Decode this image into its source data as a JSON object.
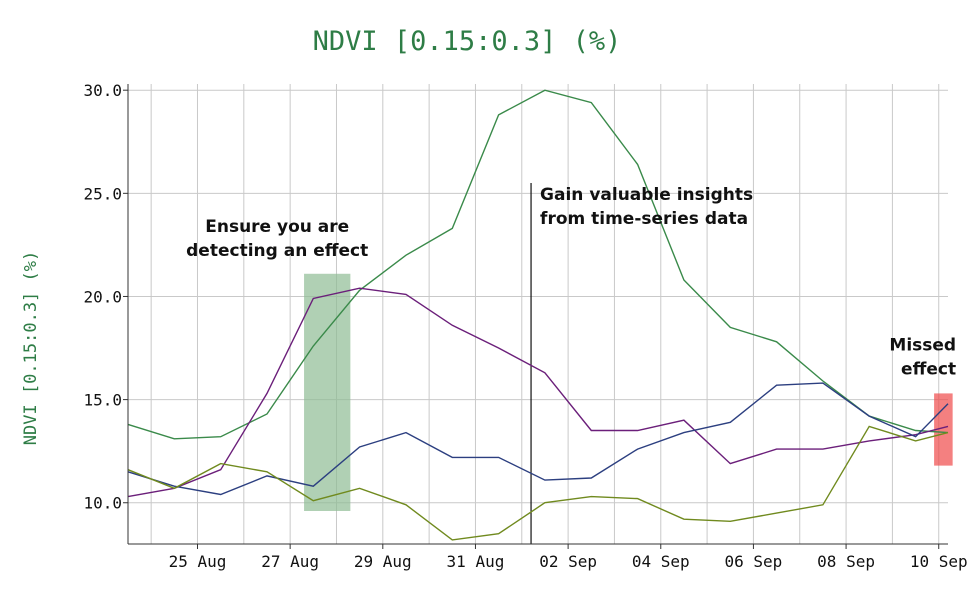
{
  "chart_data": {
    "type": "line",
    "title": "NDVI [0.15:0.3] (%)",
    "xlabel": "",
    "ylabel": "NDVI [0.15:0.3] (%)",
    "x_tick_labels": [
      "25 Aug",
      "27 Aug",
      "29 Aug",
      "31 Aug",
      "02 Sep",
      "04 Sep",
      "06 Sep",
      "08 Sep",
      "10 Sep"
    ],
    "y_tick_labels": [
      "10.0",
      "15.0",
      "20.0",
      "25.0",
      "30.0"
    ],
    "y_ticks": [
      10,
      15,
      20,
      25,
      30
    ],
    "xlim": [
      23.5,
      41.2
    ],
    "ylim": [
      8.0,
      30.3
    ],
    "grid": true,
    "x_unit": "day index (24 = 24 Aug, 33 = 02 Sep)",
    "series": [
      {
        "name": "series-green",
        "color": "#3a8a4a",
        "x": [
          23.5,
          24.5,
          25.5,
          26.5,
          27.5,
          28.5,
          29.5,
          30.5,
          31.5,
          32.5,
          33.5,
          34.5,
          35.5,
          36.5,
          37.5,
          38.5,
          39.5,
          40.5,
          41.2
        ],
        "y": [
          13.8,
          13.1,
          13.2,
          14.3,
          17.6,
          20.3,
          22.0,
          23.3,
          28.8,
          30.0,
          29.4,
          26.4,
          20.8,
          18.5,
          17.8,
          15.9,
          14.2,
          13.5,
          13.4
        ]
      },
      {
        "name": "series-purple",
        "color": "#6b1f7a",
        "x": [
          23.5,
          24.5,
          25.5,
          26.5,
          27.5,
          28.5,
          29.5,
          30.5,
          31.5,
          32.5,
          33.5,
          34.5,
          35.5,
          36.5,
          37.5,
          38.5,
          39.5,
          40.5,
          41.2
        ],
        "y": [
          10.3,
          10.7,
          11.6,
          15.3,
          19.9,
          20.4,
          20.1,
          18.6,
          17.5,
          16.3,
          13.5,
          13.5,
          14.0,
          11.9,
          12.6,
          12.6,
          13.0,
          13.3,
          13.7
        ]
      },
      {
        "name": "series-blue",
        "color": "#2c3f80",
        "x": [
          23.5,
          24.5,
          25.5,
          26.5,
          27.5,
          28.5,
          29.5,
          30.5,
          31.5,
          32.5,
          33.5,
          34.5,
          35.5,
          36.5,
          37.5,
          38.5,
          39.5,
          40.5,
          41.2
        ],
        "y": [
          11.5,
          10.8,
          10.4,
          11.3,
          10.8,
          12.7,
          13.4,
          12.2,
          12.2,
          11.1,
          11.2,
          12.6,
          13.4,
          13.9,
          15.7,
          15.8,
          14.2,
          13.2,
          14.8
        ]
      },
      {
        "name": "series-olive",
        "color": "#708a1e",
        "x": [
          23.5,
          24.5,
          25.5,
          26.5,
          27.5,
          28.5,
          29.5,
          30.5,
          31.5,
          32.5,
          33.5,
          34.5,
          35.5,
          36.5,
          37.5,
          38.5,
          39.5,
          40.5,
          41.2
        ],
        "y": [
          11.6,
          10.7,
          11.9,
          11.5,
          10.1,
          10.7,
          9.9,
          8.2,
          8.5,
          10.0,
          10.3,
          10.2,
          9.2,
          9.1,
          9.5,
          9.9,
          13.7,
          13.0,
          13.4
        ]
      }
    ],
    "annotations": [
      {
        "text": [
          "Ensure you are",
          "detecting an effect"
        ],
        "kind": "shaded-region",
        "x_range": [
          27.3,
          28.3
        ],
        "y_range": [
          9.6,
          21.1
        ],
        "color": "#8fbc94"
      },
      {
        "text": [
          "Gain valuable insights",
          "from time-series data"
        ],
        "kind": "vertical-line",
        "x": 32.2,
        "y_range": [
          8.0,
          25.5
        ],
        "color": "#111111"
      },
      {
        "text": [
          "Missed",
          "effect"
        ],
        "kind": "shaded-region",
        "x_range": [
          40.9,
          41.3
        ],
        "y_range": [
          11.8,
          15.3
        ],
        "color": "#f04a4a"
      }
    ]
  }
}
